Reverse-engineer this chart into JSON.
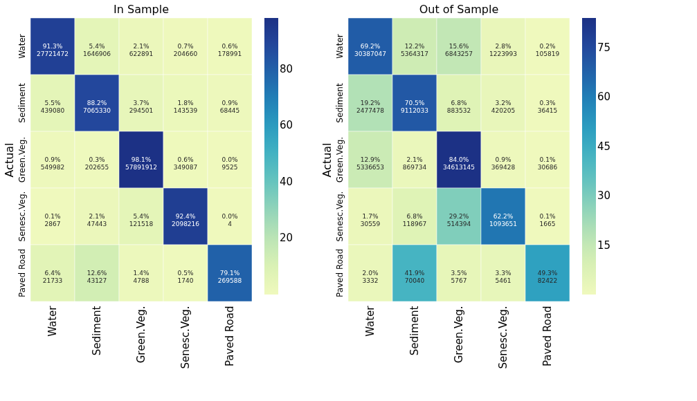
{
  "chart_data": [
    {
      "type": "heatmap",
      "title": "In Sample",
      "ylabel": "Actual",
      "categories": [
        "Water",
        "Sediment",
        "Green.Veg.",
        "Senesc.Veg.",
        "Paved Road"
      ],
      "y_categories": [
        "Water",
        "Sediment",
        "Green.Veg.",
        "Senesc.Veg.",
        "Paved Road"
      ],
      "cells": [
        [
          91.3,
          5.4,
          2.1,
          0.7,
          0.6
        ],
        [
          5.5,
          88.2,
          3.7,
          1.8,
          0.9
        ],
        [
          0.9,
          0.3,
          98.1,
          0.6,
          0.0
        ],
        [
          0.1,
          2.1,
          5.4,
          92.4,
          0.0
        ],
        [
          6.4,
          12.6,
          1.4,
          0.5,
          79.1
        ]
      ],
      "cell_labels": [
        [
          "91.3%\n27721472",
          "5.4%\n1646906",
          "2.1%\n622891",
          "0.7%\n204660",
          "0.6%\n178991"
        ],
        [
          "5.5%\n439080",
          "88.2%\n7065330",
          "3.7%\n294501",
          "1.8%\n143539",
          "0.9%\n68445"
        ],
        [
          "0.9%\n549982",
          "0.3%\n202655",
          "98.1%\n57891912",
          "0.6%\n349087",
          "0.0%\n9525"
        ],
        [
          "0.1%\n2867",
          "2.1%\n47443",
          "5.4%\n121518",
          "92.4%\n2098216",
          "0.0%\n4"
        ],
        [
          "6.4%\n21733",
          "12.6%\n43127",
          "1.4%\n4788",
          "0.5%\n1740",
          "79.1%\n269588"
        ]
      ],
      "clim": [
        0.0,
        98.1
      ],
      "cticks": [
        20,
        40,
        60,
        80
      ]
    },
    {
      "type": "heatmap",
      "title": "Out of Sample",
      "ylabel": "Actual",
      "categories": [
        "Water",
        "Sediment",
        "Green.Veg.",
        "Senesc.Veg.",
        "Paved Road"
      ],
      "y_categories": [
        "Water",
        "Sediment",
        "Green.Veg.",
        "Senesc.Veg.",
        "Paved Road"
      ],
      "cells": [
        [
          69.2,
          12.2,
          15.6,
          2.8,
          0.2
        ],
        [
          19.2,
          70.5,
          6.8,
          3.2,
          0.3
        ],
        [
          12.9,
          2.1,
          84.0,
          0.9,
          0.1
        ],
        [
          1.7,
          6.8,
          29.2,
          62.2,
          0.1
        ],
        [
          2.0,
          41.9,
          3.5,
          3.3,
          49.3
        ]
      ],
      "cell_labels": [
        [
          "69.2%\n30387047",
          "12.2%\n5364317",
          "15.6%\n6843257",
          "2.8%\n1223993",
          "0.2%\n105819"
        ],
        [
          "19.2%\n2477478",
          "70.5%\n9112033",
          "6.8%\n883532",
          "3.2%\n420205",
          "0.3%\n36415"
        ],
        [
          "12.9%\n5336653",
          "2.1%\n869734",
          "84.0%\n34613145",
          "0.9%\n369428",
          "0.1%\n30686"
        ],
        [
          "1.7%\n30559",
          "6.8%\n118967",
          "29.2%\n514394",
          "62.2%\n1093651",
          "0.1%\n1665"
        ],
        [
          "2.0%\n3332",
          "41.9%\n70040",
          "3.5%\n5767",
          "3.3%\n5461",
          "49.3%\n82422"
        ]
      ],
      "clim": [
        0.1,
        84.0
      ],
      "cticks": [
        15,
        30,
        45,
        60,
        75
      ]
    }
  ]
}
